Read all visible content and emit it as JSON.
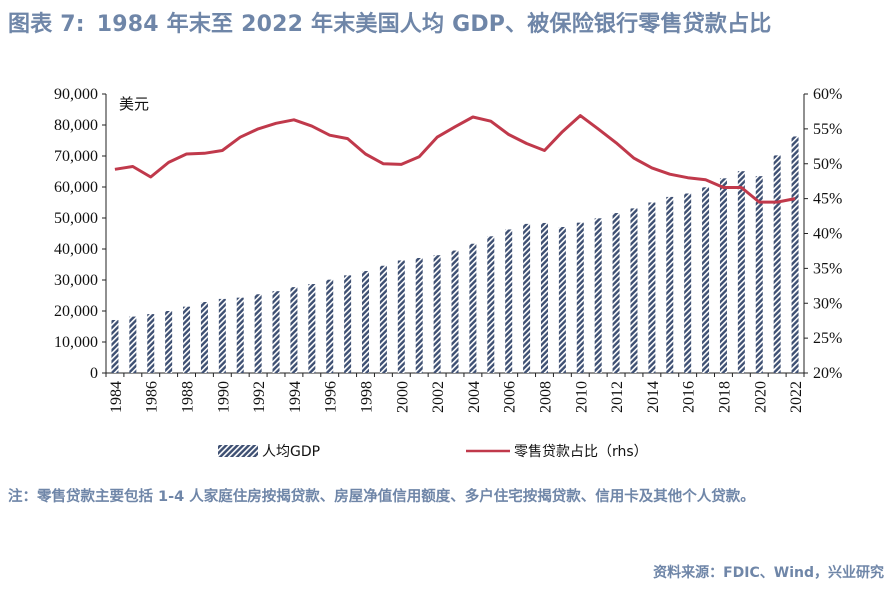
{
  "figure": {
    "label": "图表 7:",
    "title": "1984 年末至 2022 年末美国人均 GDP、被保险银行零售贷款占比"
  },
  "note": "注：零售贷款主要包括 1-4 人家庭住房按揭贷款、房屋净值信用额度、多户住宅按揭贷款、信用卡及其他个人贷款。",
  "source": "资料来源：FDIC、Wind，兴业研究",
  "colors": {
    "title": "#6f86a8",
    "bar_fill": "#3d4f72",
    "bar_stripe": "#ffffff",
    "line": "#c0394b"
  },
  "chart_data": {
    "type": "bar+line",
    "unit_label": "美元",
    "x": [
      1984,
      1985,
      1986,
      1987,
      1988,
      1989,
      1990,
      1991,
      1992,
      1993,
      1994,
      1995,
      1996,
      1997,
      1998,
      1999,
      2000,
      2001,
      2002,
      2003,
      2004,
      2005,
      2006,
      2007,
      2008,
      2009,
      2010,
      2011,
      2012,
      2013,
      2014,
      2015,
      2016,
      2017,
      2018,
      2019,
      2020,
      2021,
      2022
    ],
    "x_tick_labels": [
      "1984",
      "1986",
      "1988",
      "1990",
      "1992",
      "1994",
      "1996",
      "1998",
      "2000",
      "2002",
      "2004",
      "2006",
      "2008",
      "2010",
      "2012",
      "2014",
      "2016",
      "2018",
      "2020",
      "2022"
    ],
    "y_left": {
      "lim": [
        0,
        90000
      ],
      "ticks": [
        0,
        10000,
        20000,
        30000,
        40000,
        50000,
        60000,
        70000,
        80000,
        90000
      ],
      "tick_labels": [
        "0",
        "10,000",
        "20,000",
        "30,000",
        "40,000",
        "50,000",
        "60,000",
        "70,000",
        "80,000",
        "90,000"
      ]
    },
    "y_right": {
      "lim": [
        20,
        60
      ],
      "ticks": [
        20,
        25,
        30,
        35,
        40,
        45,
        50,
        55,
        60
      ],
      "tick_labels": [
        "20%",
        "25%",
        "30%",
        "35%",
        "40%",
        "45%",
        "50%",
        "55%",
        "60%"
      ]
    },
    "series": [
      {
        "name": "人均GDP",
        "type": "bar",
        "axis": "left",
        "values": [
          17100,
          18200,
          19000,
          20000,
          21400,
          22900,
          23900,
          24300,
          25400,
          26400,
          27700,
          28700,
          30100,
          31500,
          32900,
          34600,
          36300,
          37100,
          38000,
          39500,
          41700,
          44100,
          46300,
          48100,
          48400,
          47100,
          48500,
          49900,
          51600,
          53100,
          55000,
          56800,
          57900,
          59900,
          62800,
          65100,
          63500,
          70200,
          76300
        ]
      },
      {
        "name": "零售贷款占比（rhs）",
        "type": "line",
        "axis": "right",
        "values": [
          49.2,
          49.6,
          48.1,
          50.2,
          51.4,
          51.5,
          51.9,
          53.8,
          55.0,
          55.8,
          56.3,
          55.4,
          54.1,
          53.6,
          51.4,
          50.0,
          49.9,
          51.0,
          53.8,
          55.3,
          56.7,
          56.1,
          54.2,
          52.9,
          51.9,
          54.6,
          56.9,
          55.0,
          53.0,
          50.8,
          49.4,
          48.5,
          48.0,
          47.7,
          46.6,
          46.6,
          44.5,
          44.5,
          45.0
        ]
      }
    ]
  }
}
